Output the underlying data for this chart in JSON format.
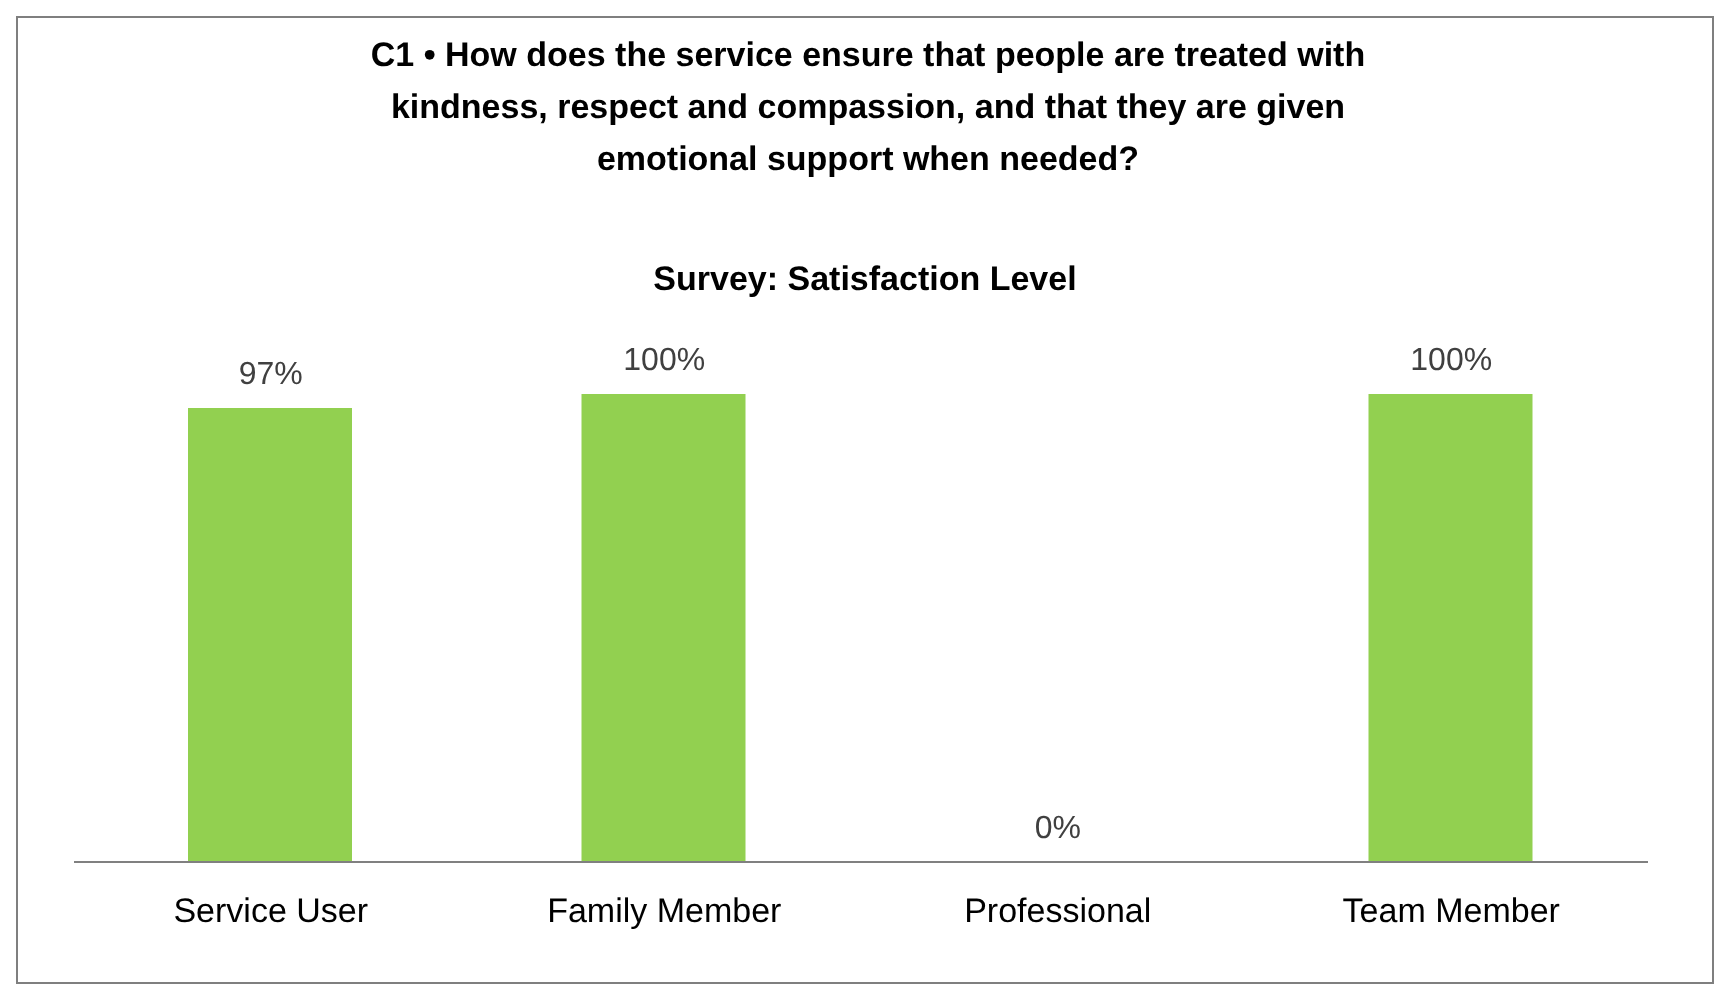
{
  "chart_data": {
    "type": "bar",
    "title": "C1 • How does the service ensure that people are treated with kindness, respect and compassion, and that they are given emotional support when needed?",
    "subtitle": "Survey: Satisfaction Level",
    "categories": [
      "Service User",
      "Family Member",
      "Professional",
      "Team Member"
    ],
    "values": [
      97,
      100,
      0,
      100
    ],
    "value_labels": [
      "97%",
      "100%",
      "0%",
      "100%"
    ],
    "color": "#92d050"
  }
}
